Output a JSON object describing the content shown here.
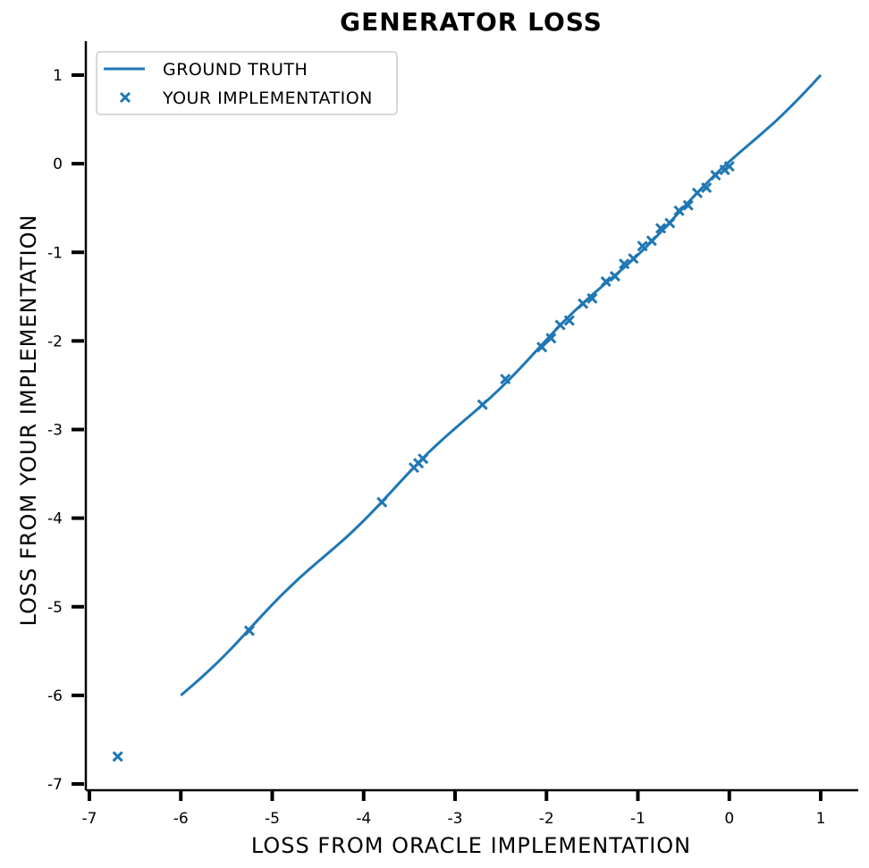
{
  "chart_data": {
    "type": "line",
    "title": "GENERATOR LOSS",
    "xlabel": "LOSS FROM ORACLE IMPLEMENTATION",
    "ylabel": "LOSS FROM YOUR IMPLEMENTATION",
    "xlim": [
      -7,
      1
    ],
    "ylim": [
      -7,
      1
    ],
    "xticks": [
      "-7",
      "-6",
      "-5",
      "-4",
      "-3",
      "-2",
      "-1",
      "0",
      "1"
    ],
    "yticks": [
      "1",
      "0",
      "-1",
      "-2",
      "-3",
      "-4",
      "-5",
      "-6",
      "-7"
    ],
    "grid": false,
    "legend_position": "top-left",
    "series": [
      {
        "name": "GROUND TRUTH",
        "kind": "line",
        "color": "#1f77b4",
        "x": [
          -6,
          1
        ],
        "y": [
          -6,
          1
        ]
      },
      {
        "name": "YOUR IMPLEMENTATION",
        "kind": "scatter",
        "marker": "x",
        "color": "#1f77b4",
        "x": [
          -6.69,
          -5.25,
          -3.8,
          -3.45,
          -3.4,
          -3.35,
          -2.7,
          -2.45,
          -2.05,
          -1.95,
          -1.85,
          -1.75,
          -1.6,
          -1.5,
          -1.35,
          -1.25,
          -1.15,
          -1.05,
          -0.95,
          -0.85,
          -0.75,
          -0.65,
          -0.55,
          -0.45,
          -0.35,
          -0.25,
          -0.15,
          -0.05,
          0.0
        ],
        "y": [
          -6.69,
          -5.27,
          -3.82,
          -3.43,
          -3.38,
          -3.33,
          -2.72,
          -2.43,
          -2.07,
          -1.97,
          -1.82,
          -1.77,
          -1.58,
          -1.52,
          -1.33,
          -1.27,
          -1.13,
          -1.07,
          -0.93,
          -0.87,
          -0.73,
          -0.67,
          -0.53,
          -0.47,
          -0.33,
          -0.27,
          -0.13,
          -0.07,
          -0.03
        ]
      }
    ]
  }
}
